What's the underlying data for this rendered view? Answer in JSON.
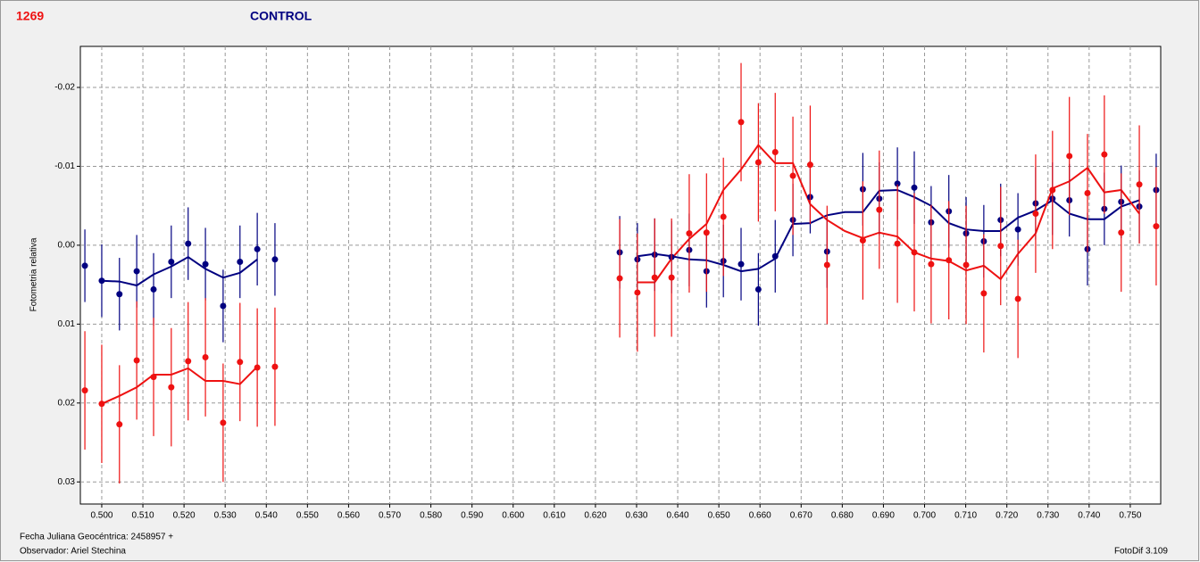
{
  "chart_data": {
    "type": "errorbar",
    "title": "1269",
    "subtitle": "CONTROL",
    "y_label": "Fotometria relativa",
    "footer_left": [
      "Fecha Juliana Geocéntrica: 2458957 +",
      "Observador: Ariel Stechina"
    ],
    "footer_right": "FotoDif 3.109",
    "xlim": [
      0.4948,
      0.7574
    ],
    "ylim": [
      0.0328,
      -0.0252
    ],
    "grid": true,
    "xticks": [
      {
        "value": 0.5,
        "label": "0.500"
      },
      {
        "value": 0.51,
        "label": "0.510"
      },
      {
        "value": 0.52,
        "label": "0.520"
      },
      {
        "value": 0.53,
        "label": "0.530"
      },
      {
        "value": 0.54,
        "label": "0.540"
      },
      {
        "value": 0.55,
        "label": "0.550"
      },
      {
        "value": 0.56,
        "label": "0.560"
      },
      {
        "value": 0.57,
        "label": "0.570"
      },
      {
        "value": 0.58,
        "label": "0.580"
      },
      {
        "value": 0.59,
        "label": "0.590"
      },
      {
        "value": 0.6,
        "label": "0.600"
      },
      {
        "value": 0.61,
        "label": "0.610"
      },
      {
        "value": 0.62,
        "label": "0.620"
      },
      {
        "value": 0.63,
        "label": "0.630"
      },
      {
        "value": 0.64,
        "label": "0.640"
      },
      {
        "value": 0.65,
        "label": "0.650"
      },
      {
        "value": 0.66,
        "label": "0.660"
      },
      {
        "value": 0.67,
        "label": "0.670"
      },
      {
        "value": 0.68,
        "label": "0.680"
      },
      {
        "value": 0.69,
        "label": "0.690"
      },
      {
        "value": 0.7,
        "label": "0.700"
      },
      {
        "value": 0.71,
        "label": "0.710"
      },
      {
        "value": 0.72,
        "label": "0.720"
      },
      {
        "value": 0.73,
        "label": "0.730"
      },
      {
        "value": 0.74,
        "label": "0.740"
      },
      {
        "value": 0.75,
        "label": "0.750"
      }
    ],
    "yticks": [
      -0.02,
      -0.01,
      {
        "value": 0,
        "label": "0.00"
      },
      0.01,
      0.02,
      0.03
    ],
    "series": [
      {
        "mode": "points",
        "color": "#000080",
        "x": [
          0.4959,
          0.5,
          0.5043,
          0.5085,
          0.5126,
          0.5169,
          0.521,
          0.5252,
          0.5295,
          0.5336,
          0.5378,
          0.5421,
          0.6259,
          0.6302,
          0.6344,
          0.6385,
          0.6428,
          0.647,
          0.6511,
          0.6554,
          0.6596,
          0.6637,
          0.668,
          0.6722,
          0.6763,
          0.685,
          0.689,
          0.6934,
          0.6975,
          0.7016,
          0.7059,
          0.7101,
          0.7144,
          0.7185,
          0.7227,
          0.727,
          0.7311,
          0.7352,
          0.7396,
          0.7437,
          0.7478,
          0.7522,
          0.7563
        ],
        "values": [
          0.0026,
          0.0045,
          0.0062,
          0.0033,
          0.0056,
          0.0021,
          -0.0002,
          0.0024,
          0.0077,
          0.0021,
          0.0005,
          0.0018,
          0.0009,
          0.0018,
          0.0012,
          0.0015,
          0.0006,
          0.0033,
          0.002,
          0.0024,
          0.0056,
          0.0014,
          -0.0032,
          -0.0061,
          0.0008,
          -0.0071,
          -0.0059,
          -0.0078,
          -0.0073,
          -0.0029,
          -0.0043,
          -0.0015,
          -0.0005,
          -0.0032,
          -0.002,
          -0.0053,
          -0.0059,
          -0.0057,
          0.0005,
          -0.0046,
          -0.0055,
          -0.0049,
          -0.007
        ],
        "errors": [
          0.0046,
          0.0046,
          0.0046,
          0.0046,
          0.0046,
          0.0046,
          0.0046,
          0.0046,
          0.0046,
          0.0046,
          0.0046,
          0.0046,
          0.0046,
          0.0046,
          0.0046,
          0.0046,
          0.0046,
          0.0046,
          0.0046,
          0.0046,
          0.0046,
          0.0046,
          0.0046,
          0.0046,
          0.0046,
          0.0046,
          0.0046,
          0.0046,
          0.0046,
          0.0046,
          0.0046,
          0.0046,
          0.0046,
          0.0046,
          0.0046,
          0.0046,
          0.0046,
          0.0046,
          0.0046,
          0.0046,
          0.0046,
          0.0046,
          0.0046
        ]
      },
      {
        "mode": "points",
        "color": "#ee1111",
        "x": [
          0.4959,
          0.5,
          0.5043,
          0.5085,
          0.5126,
          0.5169,
          0.521,
          0.5252,
          0.5295,
          0.5336,
          0.5378,
          0.5421,
          0.6259,
          0.6302,
          0.6344,
          0.6385,
          0.6428,
          0.647,
          0.6511,
          0.6554,
          0.6596,
          0.6637,
          0.668,
          0.6722,
          0.6763,
          0.685,
          0.689,
          0.6934,
          0.6975,
          0.7016,
          0.7059,
          0.7101,
          0.7144,
          0.7185,
          0.7227,
          0.727,
          0.7311,
          0.7352,
          0.7396,
          0.7437,
          0.7478,
          0.7522,
          0.7563
        ],
        "values": [
          0.0184,
          0.0201,
          0.0227,
          0.0146,
          0.0167,
          0.018,
          0.0147,
          0.0142,
          0.0225,
          0.0148,
          0.0155,
          0.0154,
          0.0042,
          0.006,
          0.0041,
          0.0041,
          -0.0015,
          -0.0016,
          -0.0036,
          -0.0156,
          -0.0105,
          -0.0118,
          -0.0088,
          -0.0102,
          0.0025,
          -0.0006,
          -0.0045,
          -0.0002,
          0.0009,
          0.0024,
          0.0019,
          0.0025,
          0.0061,
          0.0001,
          0.0068,
          -0.004,
          -0.007,
          -0.0113,
          -0.0066,
          -0.0115,
          -0.0016,
          -0.0077,
          -0.0024
        ],
        "errors": [
          0.0075,
          0.0075,
          0.0075,
          0.0075,
          0.0075,
          0.0075,
          0.0075,
          0.0075,
          0.0075,
          0.0075,
          0.0075,
          0.0075,
          0.0075,
          0.0075,
          0.0075,
          0.0075,
          0.0075,
          0.0075,
          0.0075,
          0.0075,
          0.0075,
          0.0075,
          0.0075,
          0.0075,
          0.0075,
          0.0075,
          0.0075,
          0.0075,
          0.0075,
          0.0075,
          0.0075,
          0.0075,
          0.0075,
          0.0075,
          0.0075,
          0.0075,
          0.0075,
          0.0075,
          0.0075,
          0.0075,
          0.0075,
          0.0075,
          0.0075
        ]
      },
      {
        "mode": "line",
        "color": "#000080",
        "x": [
          0.5,
          0.5043,
          0.5085,
          0.5126,
          0.5169,
          0.521,
          0.5252,
          0.5295,
          0.5336,
          0.5378
        ],
        "values": [
          0.0045,
          0.0046,
          0.0051,
          0.0037,
          0.0027,
          0.0015,
          0.003,
          0.0041,
          0.0035,
          0.0018
        ]
      },
      {
        "mode": "line",
        "color": "#000080",
        "x": [
          0.6302,
          0.6344,
          0.6385,
          0.6428,
          0.647,
          0.6511,
          0.6554,
          0.6596,
          0.6637,
          0.668,
          0.6722,
          0.6763,
          0.6806,
          0.685,
          0.689,
          0.6934,
          0.6975,
          0.7016,
          0.7059,
          0.7101,
          0.7144,
          0.7185,
          0.7227,
          0.727,
          0.7311,
          0.7352,
          0.7396,
          0.7437,
          0.7478,
          0.7522
        ],
        "values": [
          0.0014,
          0.0011,
          0.0014,
          0.0018,
          0.0019,
          0.0025,
          0.0033,
          0.003,
          0.0017,
          -0.0027,
          -0.0028,
          -0.0038,
          -0.0042,
          -0.0042,
          -0.0069,
          -0.007,
          -0.0061,
          -0.005,
          -0.0028,
          -0.002,
          -0.0018,
          -0.0018,
          -0.0035,
          -0.0044,
          -0.0057,
          -0.004,
          -0.0033,
          -0.0033,
          -0.0049,
          -0.0057
        ]
      },
      {
        "mode": "line",
        "color": "#ee1111",
        "x": [
          0.5,
          0.5043,
          0.5085,
          0.5126,
          0.5169,
          0.521,
          0.5252,
          0.5295,
          0.5336,
          0.5378
        ],
        "values": [
          0.0201,
          0.0191,
          0.018,
          0.0164,
          0.0164,
          0.0156,
          0.0172,
          0.0172,
          0.0176,
          0.0154
        ]
      },
      {
        "mode": "line",
        "color": "#ee1111",
        "x": [
          0.6302,
          0.6344,
          0.6385,
          0.6428,
          0.647,
          0.6511,
          0.6554,
          0.6596,
          0.6637,
          0.668,
          0.6722,
          0.6763,
          0.6806,
          0.685,
          0.689,
          0.6934,
          0.6975,
          0.7016,
          0.7059,
          0.7101,
          0.7144,
          0.7185,
          0.7227,
          0.727,
          0.7311,
          0.7352,
          0.7396,
          0.7437,
          0.7478,
          0.7522
        ],
        "values": [
          0.0047,
          0.0047,
          0.0017,
          -0.0008,
          -0.0027,
          -0.007,
          -0.0096,
          -0.0127,
          -0.0104,
          -0.0104,
          -0.0052,
          -0.0032,
          -0.0018,
          -0.0009,
          -0.0016,
          -0.0011,
          0.0009,
          0.0017,
          0.002,
          0.0032,
          0.0026,
          0.0043,
          0.0011,
          -0.0015,
          -0.0072,
          -0.0081,
          -0.0098,
          -0.0067,
          -0.007,
          -0.004
        ]
      }
    ]
  }
}
